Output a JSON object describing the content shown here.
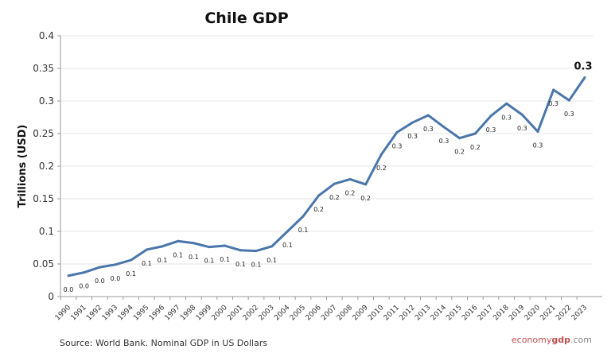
{
  "chart_data": {
    "type": "line",
    "title": "Chile GDP",
    "ylabel": "Trillions (USD)",
    "xlabel": "",
    "ylim": [
      0,
      0.4
    ],
    "yticks": [
      "0",
      "0.05",
      "0.1",
      "0.15",
      "0.2",
      "0.25",
      "0.3",
      "0.35",
      "0.4"
    ],
    "grid": true,
    "legend": "none",
    "line_color": "#4a76aa",
    "categories": [
      "1990",
      "1991",
      "1992",
      "1993",
      "1994",
      "1995",
      "1996",
      "1997",
      "1998",
      "1999",
      "2000",
      "2001",
      "2002",
      "2003",
      "2004",
      "2005",
      "2006",
      "2007",
      "2008",
      "2009",
      "2010",
      "2011",
      "2012",
      "2013",
      "2014",
      "2015",
      "2016",
      "2017",
      "2018",
      "2019",
      "2020",
      "2021",
      "2022",
      "2023"
    ],
    "values": [
      0.032,
      0.037,
      0.045,
      0.049,
      0.056,
      0.072,
      0.077,
      0.085,
      0.082,
      0.076,
      0.078,
      0.071,
      0.07,
      0.077,
      0.1,
      0.123,
      0.155,
      0.173,
      0.18,
      0.172,
      0.218,
      0.252,
      0.267,
      0.278,
      0.26,
      0.243,
      0.25,
      0.277,
      0.296,
      0.279,
      0.253,
      0.317,
      0.301,
      0.336
    ],
    "data_labels": [
      "0.0",
      "0.0",
      "0.0",
      "0.0",
      "0.1",
      "0.1",
      "0.1",
      "0.1",
      "0.1",
      "0.1",
      "0.1",
      "0.1",
      "0.1",
      "0.1",
      "0.1",
      "0.1",
      "0.2",
      "0.2",
      "0.2",
      "0.2",
      "0.2",
      "0.3",
      "0.3",
      "0.3",
      "0.3",
      "0.2",
      "0.2",
      "0.3",
      "0.3",
      "0.3",
      "0.3",
      "0.3",
      "0.3",
      "0.3"
    ]
  },
  "footer": {
    "source": "Source: World Bank.  Nominal GDP  in US Dollars",
    "brand_part1": "economy",
    "brand_part2": "gdp",
    "brand_part3": ".com"
  }
}
